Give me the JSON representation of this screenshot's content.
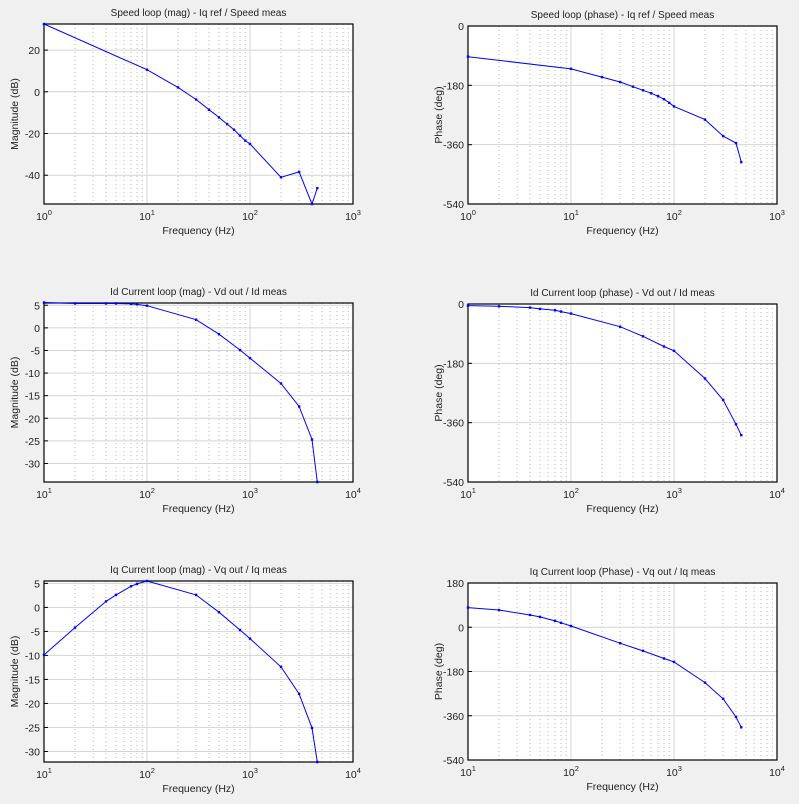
{
  "chart_data": [
    {
      "type": "line",
      "id": "speed-mag",
      "title": "Speed loop (mag) - Iq ref / Speed meas",
      "xlabel": "Frequency  (Hz)",
      "ylabel": "Magnitude (dB)",
      "xscale": "log",
      "xlim": [
        1,
        1000
      ],
      "ylim": [
        -53.8,
        32.5
      ],
      "yticks": [
        -40,
        -20,
        0,
        20
      ],
      "xtick_exponents": [
        0,
        1,
        2,
        3
      ],
      "grid": true,
      "color": "#0000ff",
      "x": [
        1,
        10,
        20,
        30,
        40,
        50,
        60,
        70,
        80,
        90,
        100,
        200,
        300,
        400,
        450
      ],
      "y": [
        32.5,
        10.6,
        2.1,
        -3.7,
        -8.6,
        -12.3,
        -15.5,
        -18.2,
        -21,
        -23.4,
        -25,
        -41,
        -38.4,
        -53.8,
        -46.2
      ]
    },
    {
      "type": "line",
      "id": "speed-phase",
      "title": "Speed loop (phase) - Iq ref / Speed meas",
      "xlabel": "Frequency  (Hz)",
      "ylabel": "Phase (deg)",
      "xscale": "log",
      "xlim": [
        1,
        1000
      ],
      "ylim": [
        -540,
        0
      ],
      "yticks": [
        -540,
        -360,
        -180,
        0
      ],
      "xtick_exponents": [
        0,
        1,
        2,
        3
      ],
      "grid": true,
      "color": "#0000ff",
      "x": [
        1,
        10,
        20,
        30,
        40,
        50,
        60,
        70,
        80,
        90,
        100,
        200,
        300,
        400,
        450
      ],
      "y": [
        -93,
        -130,
        -155,
        -170,
        -184,
        -195,
        -204,
        -213,
        -222,
        -233,
        -244,
        -284,
        -334,
        -355,
        -413
      ]
    },
    {
      "type": "line",
      "id": "id-mag",
      "title": "Id Current loop (mag) - Vd out / Id meas",
      "xlabel": "Frequency  (Hz)",
      "ylabel": "Magnitude (dB)",
      "xscale": "log",
      "xlim": [
        10,
        10000
      ],
      "ylim": [
        -34.1,
        5.5
      ],
      "yticks": [
        -30,
        -25,
        -20,
        -15,
        -10,
        -5,
        0,
        5
      ],
      "xtick_exponents": [
        1,
        2,
        3,
        4
      ],
      "grid": true,
      "color": "#0000ff",
      "x": [
        10,
        20,
        40,
        50,
        70,
        80,
        100,
        300,
        500,
        800,
        1000,
        2000,
        3000,
        4000,
        4500
      ],
      "y": [
        5.6,
        5.4,
        5.4,
        5.4,
        5.3,
        5.2,
        4.9,
        1.8,
        -1.4,
        -4.9,
        -6.7,
        -12.3,
        -17.4,
        -24.7,
        -34.1
      ]
    },
    {
      "type": "line",
      "id": "id-phase",
      "title": "Id Current loop (phase) - Vd out / Id meas",
      "xlabel": "Frequency  (Hz)",
      "ylabel": "Phase (deg)",
      "xscale": "log",
      "xlim": [
        10,
        10000
      ],
      "ylim": [
        -540,
        0
      ],
      "yticks": [
        -540,
        -360,
        -180,
        0
      ],
      "xtick_exponents": [
        1,
        2,
        3,
        4
      ],
      "grid": true,
      "color": "#0000ff",
      "x": [
        10,
        20,
        40,
        50,
        70,
        80,
        100,
        300,
        500,
        800,
        1000,
        2000,
        3000,
        4000,
        4500
      ],
      "y": [
        -5,
        -7,
        -11,
        -15,
        -19,
        -23,
        -29,
        -69,
        -98,
        -129,
        -142,
        -226,
        -291,
        -365,
        -398
      ]
    },
    {
      "type": "line",
      "id": "iq-mag",
      "title": "Iq Current loop (mag) - Vq out / Iq meas",
      "xlabel": "Frequency  (Hz)",
      "ylabel": "Magnitude (dB)",
      "xscale": "log",
      "xlim": [
        10,
        10000
      ],
      "ylim": [
        -32.2,
        5.5
      ],
      "yticks": [
        -30,
        -25,
        -20,
        -15,
        -10,
        -5,
        0,
        5
      ],
      "xtick_exponents": [
        1,
        2,
        3,
        4
      ],
      "grid": true,
      "color": "#0000ff",
      "x": [
        10,
        20,
        40,
        50,
        70,
        80,
        100,
        300,
        500,
        800,
        1000,
        2000,
        3000,
        4000,
        4500
      ],
      "y": [
        -9.9,
        -4.2,
        1.25,
        2.6,
        4.4,
        4.9,
        5.5,
        2.6,
        -1.0,
        -4.7,
        -6.5,
        -12.4,
        -18,
        -25.1,
        -32.2
      ]
    },
    {
      "type": "line",
      "id": "iq-phase",
      "title": "Iq Current loop (Phase) - Vq out / Iq meas",
      "xlabel": "Frequency  (Hz)",
      "ylabel": "Phase (deg)",
      "xscale": "log",
      "xlim": [
        10,
        10000
      ],
      "ylim": [
        -540,
        180
      ],
      "yticks": [
        -540,
        -360,
        -180,
        0,
        180
      ],
      "xtick_exponents": [
        1,
        2,
        3,
        4
      ],
      "grid": true,
      "color": "#0000ff",
      "x": [
        10,
        20,
        40,
        50,
        70,
        80,
        100,
        300,
        500,
        800,
        1000,
        2000,
        3000,
        4000,
        4500
      ],
      "y": [
        80,
        70,
        50,
        42,
        26,
        18,
        5,
        -65,
        -96,
        -127,
        -141,
        -225,
        -291,
        -365,
        -407
      ]
    }
  ]
}
